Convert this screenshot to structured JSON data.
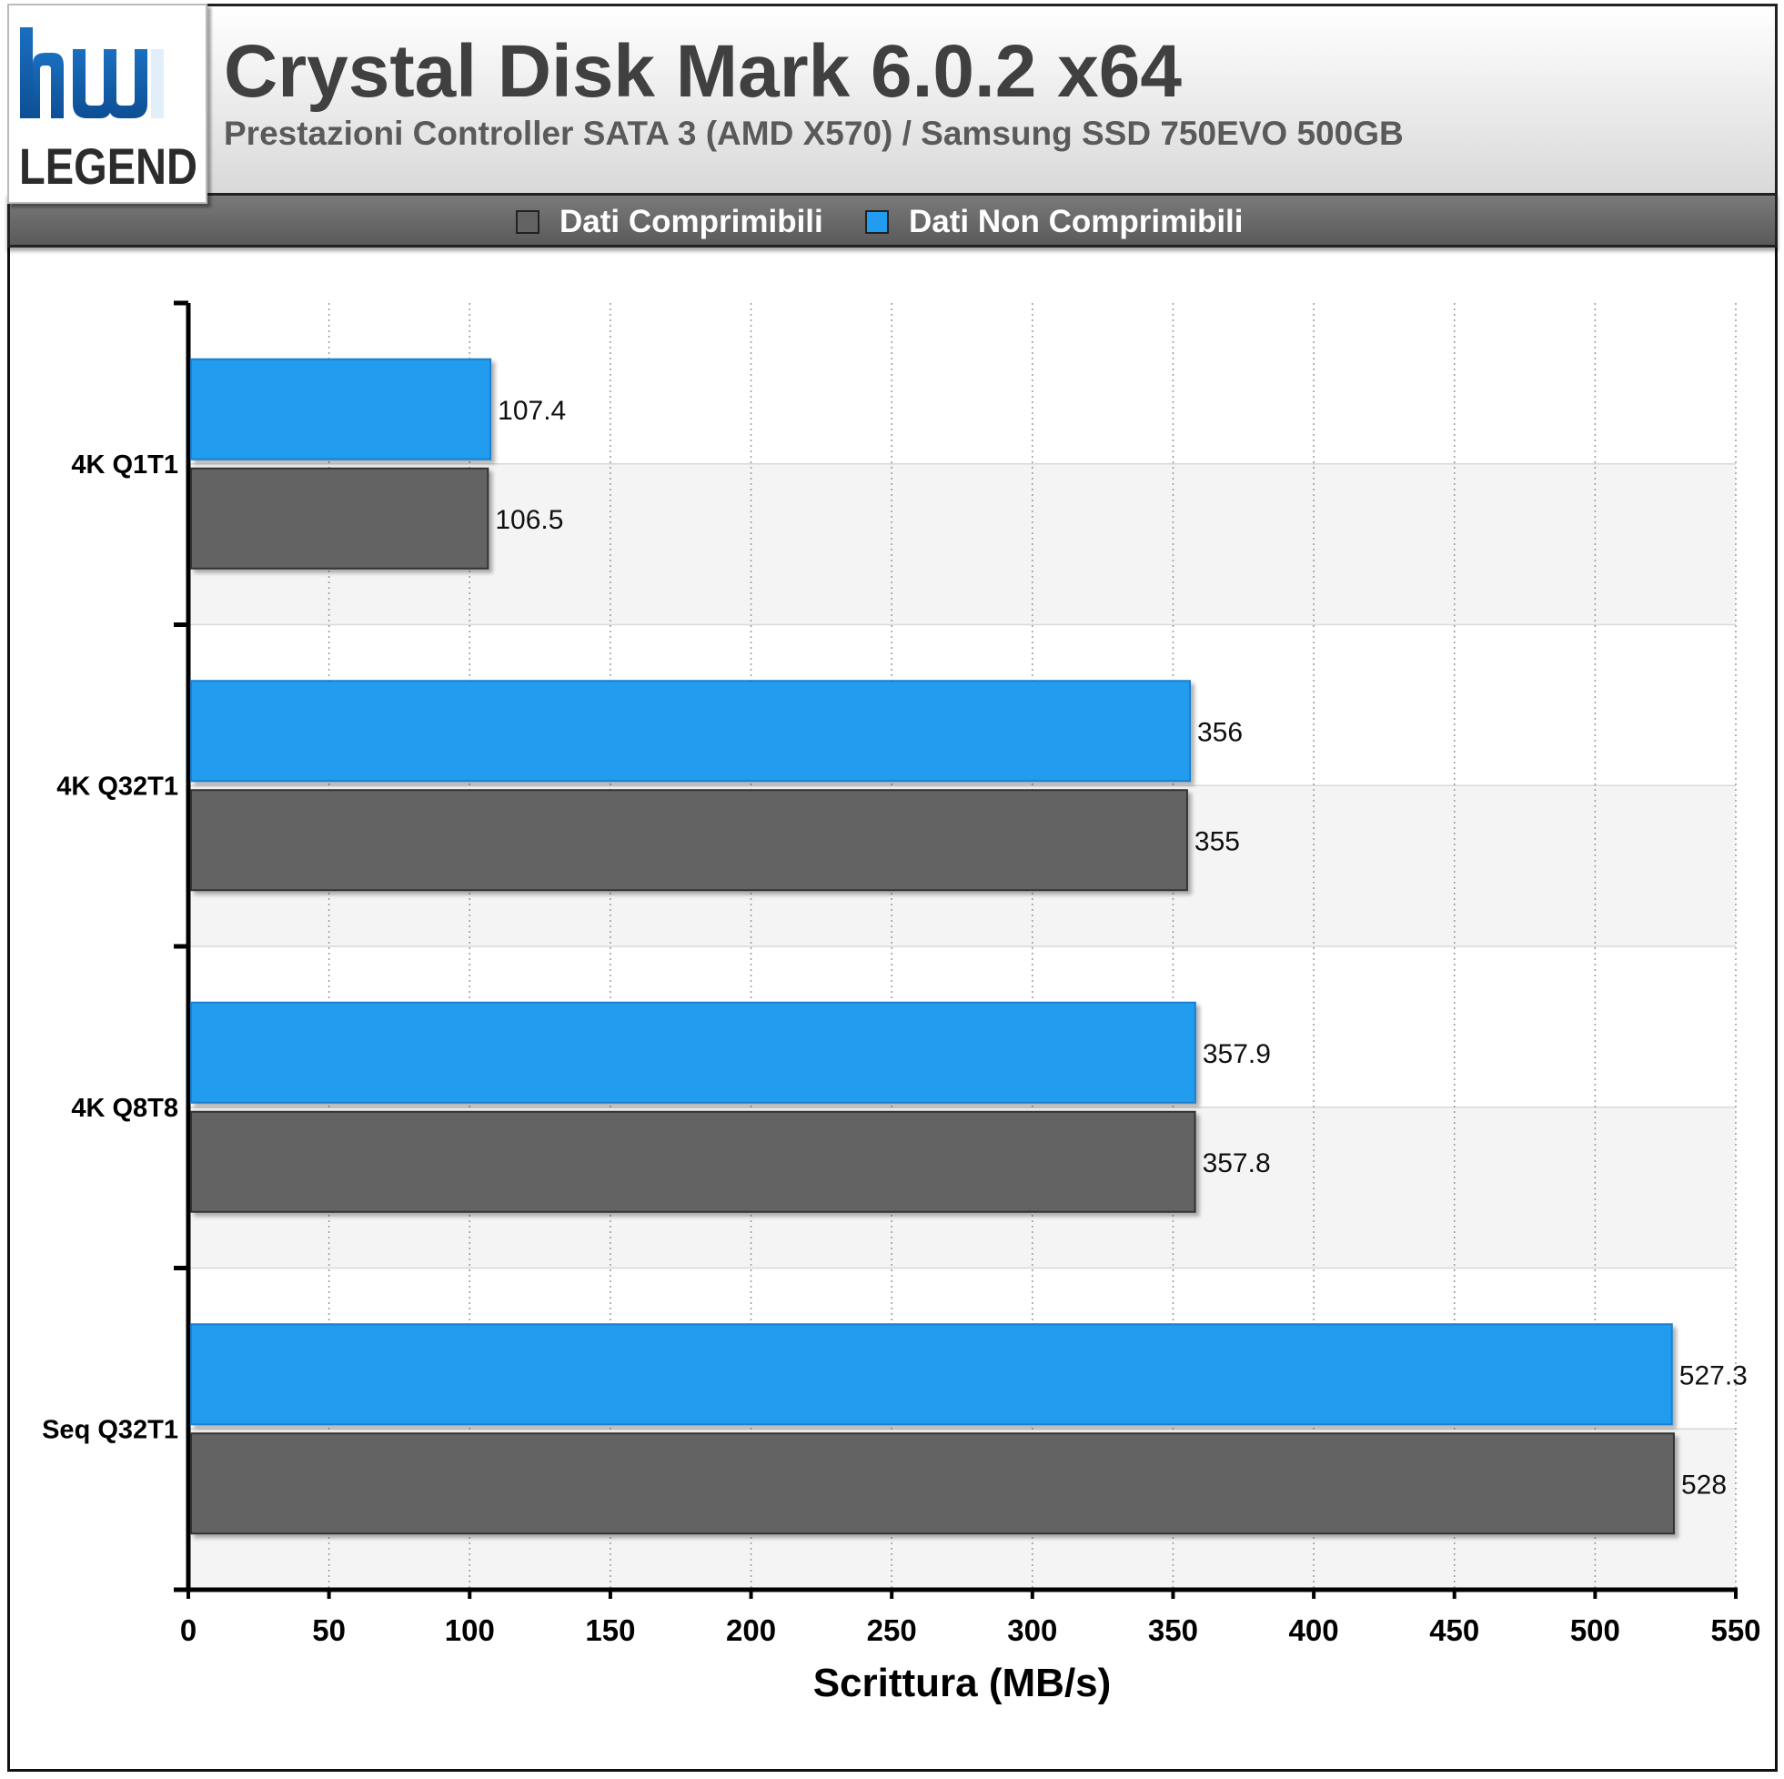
{
  "header": {
    "title": "Crystal Disk Mark 6.0.2 x64",
    "subtitle": "Prestazioni Controller SATA 3 (AMD X570) / Samsung SSD 750EVO 500GB",
    "logo_text": "hw LEGEND"
  },
  "legend": {
    "items": [
      {
        "label": "Dati Comprimibili",
        "color": "#636363"
      },
      {
        "label": "Dati Non Comprimibili",
        "color": "#219cee"
      }
    ]
  },
  "chart_data": {
    "type": "bar",
    "orientation": "horizontal",
    "title": "Crystal Disk Mark 6.0.2 x64",
    "subtitle": "Prestazioni Controller SATA 3 (AMD X570) / Samsung SSD 750EVO 500GB",
    "xlabel": "Scrittura (MB/s)",
    "ylabel": "",
    "xlim": [
      0,
      550
    ],
    "xticks": [
      0,
      50,
      100,
      150,
      200,
      250,
      300,
      350,
      400,
      450,
      500,
      550
    ],
    "categories": [
      "4K Q1T1",
      "4K Q32T1",
      "4K Q8T8",
      "Seq Q32T1"
    ],
    "series": [
      {
        "name": "Dati Non Comprimibili",
        "color": "#219cee",
        "values": [
          107.4,
          356,
          357.9,
          527.3
        ],
        "labels": [
          "107.4",
          "356",
          "357.9",
          "527.3"
        ]
      },
      {
        "name": "Dati Comprimibili",
        "color": "#636363",
        "values": [
          106.5,
          355,
          357.8,
          528
        ],
        "labels": [
          "106.5",
          "355",
          "357.8",
          "528"
        ]
      }
    ],
    "grid": true,
    "legend_position": "top"
  }
}
